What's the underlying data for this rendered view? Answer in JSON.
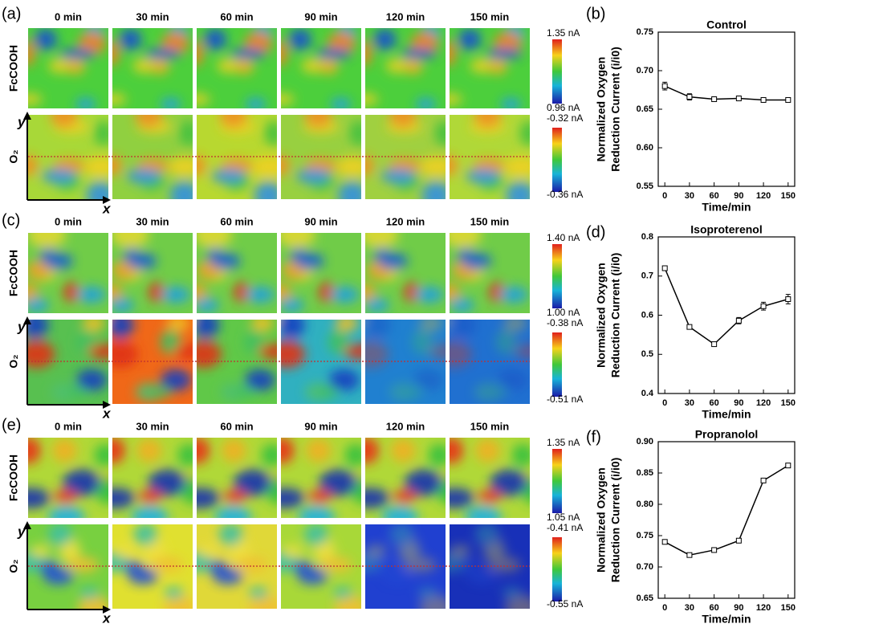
{
  "figure": {
    "panel_labels": [
      "(a)",
      "(b)",
      "(c)",
      "(d)",
      "(e)",
      "(f)"
    ],
    "time_labels": [
      "0 min",
      "30 min",
      "60 min",
      "90 min",
      "120 min",
      "150 min"
    ],
    "row_labels": [
      "FcCOOH",
      "O₂"
    ],
    "axis_x": "x",
    "axis_y": "y",
    "colorbars": [
      [
        "1.35 nA",
        "0.96 nA",
        "-0.32 nA",
        "-0.36 nA"
      ],
      [
        "1.40 nA",
        "1.00 nA",
        "-0.38 nA",
        "-0.51 nA"
      ],
      [
        "1.35 nA",
        "1.05 nA",
        "-0.41 nA",
        "-0.55 nA"
      ]
    ]
  },
  "chart_data": [
    {
      "type": "line",
      "title": "Control",
      "xlabel": "Time/min",
      "ylabel": [
        "Normalized Oxygen",
        "Reduction Current (i/i0)"
      ],
      "color": "#000000",
      "x": [
        0,
        30,
        60,
        90,
        120,
        150
      ],
      "values": [
        0.68,
        0.666,
        0.663,
        0.664,
        0.662,
        0.662
      ],
      "errors": [
        0.005,
        0.004,
        0.003,
        0.003,
        0.002,
        0.002
      ],
      "xlim": [
        -8,
        158
      ],
      "xticks": [
        0,
        30,
        60,
        90,
        120,
        150
      ],
      "ylim": [
        0.55,
        0.75
      ],
      "yticks": [
        0.55,
        {
          "value": 0.6,
          "label": "0.60"
        },
        0.65,
        {
          "value": 0.7,
          "label": "0.70"
        },
        0.75
      ]
    },
    {
      "type": "line",
      "title": "Isoproterenol",
      "xlabel": "Time/min",
      "ylabel": [
        "Normalized Oxygen",
        "Reduction Current (i/i0)"
      ],
      "color": "#000000",
      "x": [
        0,
        30,
        60,
        90,
        120,
        150
      ],
      "values": [
        0.72,
        0.57,
        0.526,
        0.586,
        0.623,
        0.641
      ],
      "errors": [
        0.005,
        0.005,
        0.003,
        0.008,
        0.01,
        0.012
      ],
      "xlim": [
        -8,
        158
      ],
      "xticks": [
        0,
        30,
        60,
        90,
        120,
        150
      ],
      "ylim": [
        0.4,
        0.8
      ],
      "yticks": [
        0.4,
        0.5,
        0.6,
        0.7,
        0.8
      ]
    },
    {
      "type": "line",
      "title": "Propranolol",
      "xlabel": "Time/min",
      "ylabel": [
        "Normalized Oxygen",
        "Reduction Current (i/i0)"
      ],
      "color": "#000000",
      "x": [
        0,
        30,
        60,
        90,
        120,
        150
      ],
      "values": [
        0.74,
        0.719,
        0.727,
        0.742,
        0.838,
        0.862
      ],
      "errors": [
        0.002,
        0.002,
        0.002,
        0.002,
        0.002,
        0.002
      ],
      "xlim": [
        -8,
        158
      ],
      "xticks": [
        0,
        30,
        60,
        90,
        120,
        150
      ],
      "ylim": [
        0.65,
        0.9
      ],
      "yticks": [
        0.65,
        {
          "value": 0.7,
          "label": "0.70"
        },
        0.75,
        {
          "value": 0.8,
          "label": "0.80"
        },
        0.85,
        {
          "value": 0.9,
          "label": "0.90"
        }
      ]
    }
  ]
}
